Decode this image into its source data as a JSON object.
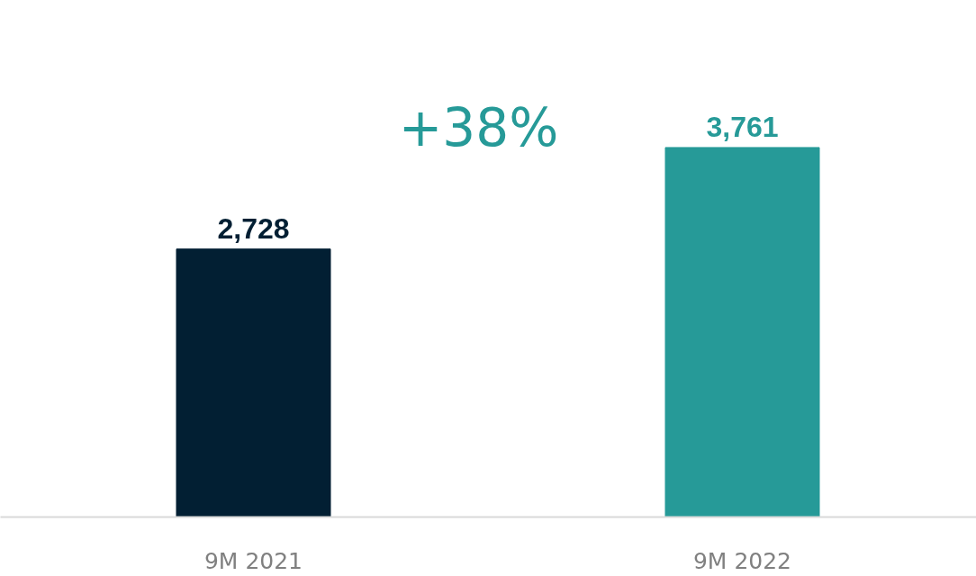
{
  "chart_data": {
    "type": "bar",
    "categories": [
      "9M 2021",
      "9M 2022"
    ],
    "values": [
      2728,
      3761
    ],
    "colors": [
      "#021f33",
      "#269a98"
    ],
    "data_labels": true,
    "value_labels": [
      "2,728",
      "3,761"
    ],
    "annotations": [
      "+38%"
    ],
    "grid": false
  }
}
